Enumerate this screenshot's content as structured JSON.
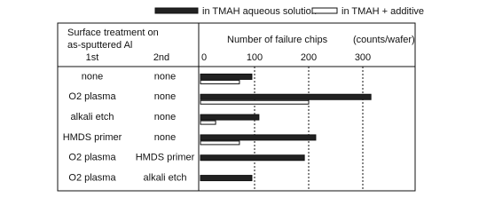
{
  "chart_data": {
    "type": "bar",
    "orientation": "horizontal",
    "header": [
      "Surface treatment on",
      "as-sputtered Al"
    ],
    "column_labels": [
      "1st",
      "2nd"
    ],
    "xlabel": "Number of failure chips",
    "xunit": "(counts/wafer)",
    "categories": [
      [
        "none",
        "none"
      ],
      [
        "O2 plasma",
        "none"
      ],
      [
        "alkali etch",
        "none"
      ],
      [
        "HMDS primer",
        "none"
      ],
      [
        "O2 plasma",
        "HMDS primer"
      ],
      [
        "O2 plasma",
        "alkali etch"
      ]
    ],
    "series": [
      {
        "name": "in TMAH aqueous solution",
        "color": "#222222",
        "values": [
          95,
          315,
          108,
          213,
          192,
          95
        ]
      },
      {
        "name": "in TMAH + additive",
        "color": "#ffffff",
        "values": [
          72,
          200,
          28,
          72,
          null,
          null
        ]
      }
    ],
    "xlim": [
      0,
      400
    ],
    "xticks": [
      0,
      100,
      200,
      300
    ],
    "grid": true
  }
}
